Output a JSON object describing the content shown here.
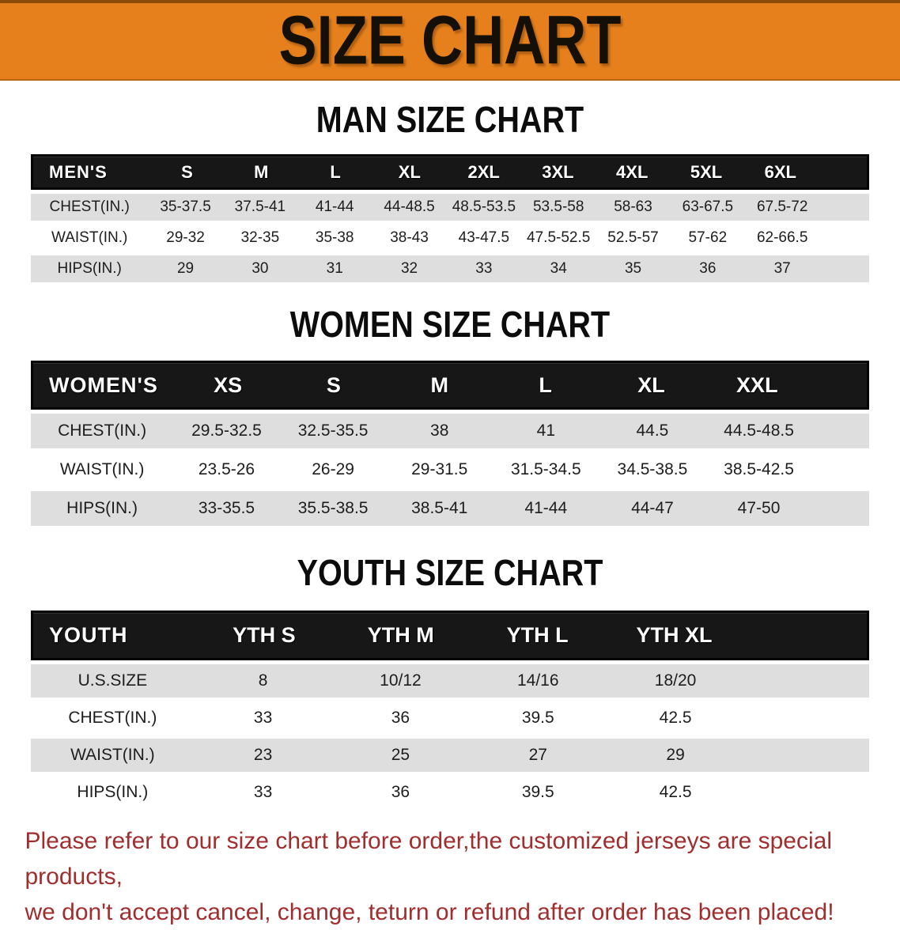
{
  "banner": {
    "title": "SIZE CHART",
    "bg_color": "#E5801C",
    "text_color": "#141007"
  },
  "sections": [
    {
      "name": "mens",
      "heading": "MAN SIZE CHART",
      "header": [
        "MEN'S",
        "S",
        "M",
        "L",
        "XL",
        "2XL",
        "3XL",
        "4XL",
        "5XL",
        "6XL"
      ],
      "rows": [
        {
          "label": "CHEST(IN.)",
          "values": [
            "35-37.5",
            "37.5-41",
            "41-44",
            "44-48.5",
            "48.5-53.5",
            "53.5-58",
            "58-63",
            "63-67.5",
            "67.5-72"
          ]
        },
        {
          "label": "WAIST(IN.)",
          "values": [
            "29-32",
            "32-35",
            "35-38",
            "38-43",
            "43-47.5",
            "47.5-52.5",
            "52.5-57",
            "57-62",
            "62-66.5"
          ]
        },
        {
          "label": "HIPS(IN.)",
          "values": [
            "29",
            "30",
            "31",
            "32",
            "33",
            "34",
            "35",
            "36",
            "37"
          ]
        }
      ]
    },
    {
      "name": "womens",
      "heading": "WOMEN SIZE CHART",
      "header": [
        "WOMEN'S",
        "XS",
        "S",
        "M",
        "L",
        "XL",
        "XXL"
      ],
      "rows": [
        {
          "label": "CHEST(IN.)",
          "values": [
            "29.5-32.5",
            "32.5-35.5",
            "38",
            "41",
            "44.5",
            "44.5-48.5"
          ]
        },
        {
          "label": "WAIST(IN.)",
          "values": [
            "23.5-26",
            "26-29",
            "29-31.5",
            "31.5-34.5",
            "34.5-38.5",
            "38.5-42.5"
          ]
        },
        {
          "label": "HIPS(IN.)",
          "values": [
            "33-35.5",
            "35.5-38.5",
            "38.5-41",
            "41-44",
            "44-47",
            "47-50"
          ]
        }
      ]
    },
    {
      "name": "youth",
      "heading": "YOUTH SIZE CHART",
      "header": [
        "YOUTH",
        "YTH S",
        "YTH M",
        "YTH L",
        "YTH XL"
      ],
      "rows": [
        {
          "label": "U.S.SIZE",
          "values": [
            "8",
            "10/12",
            "14/16",
            "18/20"
          ]
        },
        {
          "label": "CHEST(IN.)",
          "values": [
            "33",
            "36",
            "39.5",
            "42.5"
          ]
        },
        {
          "label": "WAIST(IN.)",
          "values": [
            "23",
            "25",
            "27",
            "29"
          ]
        },
        {
          "label": "HIPS(IN.)",
          "values": [
            "33",
            "36",
            "39.5",
            "42.5"
          ]
        }
      ]
    }
  ],
  "table_colors": {
    "header_bar": "#171717",
    "header_text": "#ffffff",
    "row_gray": "#DEDEDE",
    "row_white": "#ffffff"
  },
  "footer": {
    "line1": "Please refer to our size chart before order,the customized jerseys are special products,",
    "line2": "we don't accept cancel, change, teturn or refund after order has been placed!",
    "text_color": "#A02E2E"
  }
}
